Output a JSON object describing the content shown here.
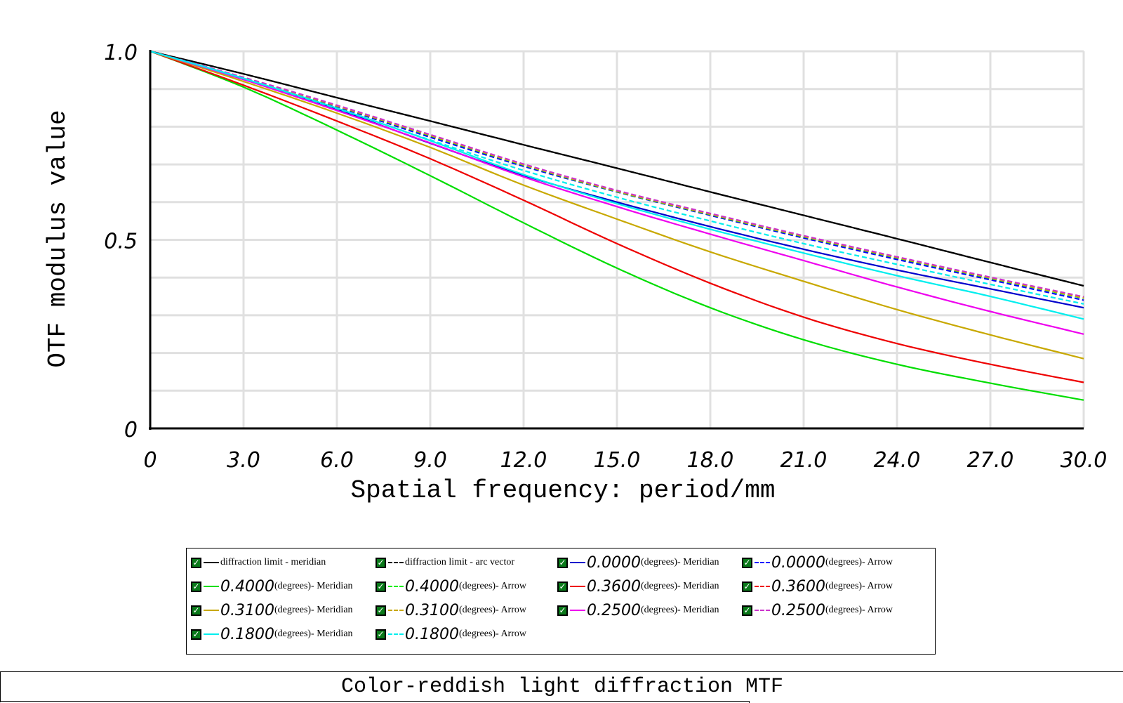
{
  "chart_data": {
    "type": "line",
    "xlabel": "Spatial frequency: period/mm",
    "ylabel": "OTF modulus value",
    "xlim": [
      0,
      30
    ],
    "ylim": [
      0,
      1
    ],
    "x_ticks": [
      "0",
      "3.0",
      "6.0",
      "9.0",
      "12.0",
      "15.0",
      "18.0",
      "21.0",
      "24.0",
      "27.0",
      "30.0"
    ],
    "y_ticks": [
      {
        "value": 0,
        "label": "0"
      },
      {
        "value": 0.5,
        "label": "0.5"
      },
      {
        "value": 1.0,
        "label": "1.0"
      }
    ],
    "grid": true,
    "x": [
      0,
      3,
      6,
      9,
      12,
      15,
      18,
      21,
      24,
      27,
      30
    ],
    "series": [
      {
        "label": "diffraction limit - meridian",
        "color": "#000000",
        "dashed": false,
        "values": [
          1.0,
          0.94,
          0.877,
          0.815,
          0.752,
          0.69,
          0.627,
          0.565,
          0.503,
          0.44,
          0.378
        ]
      },
      {
        "label": "diffraction limit - arc vector",
        "color": "#000000",
        "dashed": true,
        "values": [
          1.0,
          0.94,
          0.877,
          0.815,
          0.752,
          0.69,
          0.627,
          0.565,
          0.503,
          0.44,
          0.378
        ]
      },
      {
        "label_num": "0.0000",
        "label_text": "(degrees)- Meridian",
        "color": "#0000cc",
        "dashed": false,
        "values": [
          1.0,
          0.928,
          0.846,
          0.756,
          0.671,
          0.6,
          0.535,
          0.475,
          0.42,
          0.37,
          0.32
        ]
      },
      {
        "label_num": "0.0000",
        "label_text": "(degrees)- Arrow",
        "color": "#0000ff",
        "dashed": true,
        "values": [
          1.0,
          0.93,
          0.853,
          0.772,
          0.695,
          0.627,
          0.565,
          0.505,
          0.448,
          0.394,
          0.34
        ]
      },
      {
        "label_num": "0.4000",
        "label_text": "(degrees)- Meridian",
        "color": "#00dd00",
        "dashed": false,
        "values": [
          1.0,
          0.905,
          0.791,
          0.67,
          0.545,
          0.425,
          0.32,
          0.235,
          0.17,
          0.12,
          0.075
        ]
      },
      {
        "label_num": "0.4000",
        "label_text": "(degrees)- Arrow",
        "color": "#00ee00",
        "dashed": true,
        "values": [
          1.0,
          0.93,
          0.855,
          0.776,
          0.698,
          0.628,
          0.567,
          0.508,
          0.452,
          0.398,
          0.345
        ]
      },
      {
        "label_num": "0.3600",
        "label_text": "(degrees)- Meridian",
        "color": "#ee0000",
        "dashed": false,
        "values": [
          1.0,
          0.91,
          0.815,
          0.715,
          0.605,
          0.49,
          0.385,
          0.295,
          0.225,
          0.17,
          0.122
        ]
      },
      {
        "label_num": "0.3600",
        "label_text": "(degrees)- Arrow",
        "color": "#ee0000",
        "dashed": true,
        "values": [
          1.0,
          0.93,
          0.856,
          0.778,
          0.7,
          0.63,
          0.569,
          0.51,
          0.454,
          0.4,
          0.348
        ]
      },
      {
        "label_num": "0.3100",
        "label_text": "(degrees)- Meridian",
        "color": "#c8a800",
        "dashed": false,
        "values": [
          1.0,
          0.92,
          0.836,
          0.745,
          0.645,
          0.555,
          0.468,
          0.39,
          0.315,
          0.248,
          0.185
        ]
      },
      {
        "label_num": "0.3100",
        "label_text": "(degrees)- Arrow",
        "color": "#c8a800",
        "dashed": true,
        "values": [
          1.0,
          0.93,
          0.855,
          0.777,
          0.699,
          0.629,
          0.568,
          0.509,
          0.453,
          0.399,
          0.346
        ]
      },
      {
        "label_num": "0.2500",
        "label_text": "(degrees)- Meridian",
        "color": "#ee00ee",
        "dashed": false,
        "values": [
          1.0,
          0.925,
          0.843,
          0.757,
          0.667,
          0.588,
          0.515,
          0.445,
          0.375,
          0.31,
          0.25
        ]
      },
      {
        "label_num": "0.2500",
        "label_text": "(degrees)- Arrow",
        "color": "#cc33cc",
        "dashed": true,
        "values": [
          1.0,
          0.931,
          0.857,
          0.779,
          0.701,
          0.631,
          0.57,
          0.511,
          0.455,
          0.401,
          0.349
        ]
      },
      {
        "label_num": "0.1800",
        "label_text": "(degrees)- Meridian",
        "color": "#00eeee",
        "dashed": false,
        "values": [
          1.0,
          0.928,
          0.849,
          0.763,
          0.673,
          0.596,
          0.528,
          0.465,
          0.405,
          0.35,
          0.29
        ]
      },
      {
        "label_num": "0.1800",
        "label_text": "(degrees)- Arrow",
        "color": "#00eeee",
        "dashed": true,
        "values": [
          1.0,
          0.928,
          0.848,
          0.765,
          0.684,
          0.613,
          0.55,
          0.49,
          0.435,
          0.382,
          0.33
        ]
      }
    ]
  },
  "legend": {
    "items": [
      {
        "text": "diffraction limit - meridian",
        "color": "#000000",
        "dashed": false
      },
      {
        "text": "diffraction limit - arc vector",
        "color": "#000000",
        "dashed": true
      },
      {
        "num": "0.0000",
        "text": "(degrees)- Meridian",
        "color": "#0000cc",
        "dashed": false
      },
      {
        "num": "0.0000",
        "text": "(degrees)- Arrow",
        "color": "#0000ff",
        "dashed": true
      },
      {
        "num": "0.4000",
        "text": "(degrees)- Meridian",
        "color": "#00dd00",
        "dashed": false
      },
      {
        "num": "0.4000",
        "text": "(degrees)- Arrow",
        "color": "#00ee00",
        "dashed": true
      },
      {
        "num": "0.3600",
        "text": "(degrees)- Meridian",
        "color": "#ee0000",
        "dashed": false
      },
      {
        "num": "0.3600",
        "text": "(degrees)- Arrow",
        "color": "#ee0000",
        "dashed": true
      },
      {
        "num": "0.3100",
        "text": "(degrees)- Meridian",
        "color": "#c8a800",
        "dashed": false
      },
      {
        "num": "0.3100",
        "text": "(degrees)- Arrow",
        "color": "#c8a800",
        "dashed": true
      },
      {
        "num": "0.2500",
        "text": "(degrees)- Meridian",
        "color": "#ee00ee",
        "dashed": false
      },
      {
        "num": "0.2500",
        "text": "(degrees)- Arrow",
        "color": "#cc33cc",
        "dashed": true
      },
      {
        "num": "0.1800",
        "text": "(degrees)- Meridian",
        "color": "#00eeee",
        "dashed": false
      },
      {
        "num": "0.1800",
        "text": "(degrees)- Arrow",
        "color": "#00eeee",
        "dashed": true
      }
    ]
  },
  "footer": {
    "title": "Color-reddish light diffraction MTF"
  }
}
